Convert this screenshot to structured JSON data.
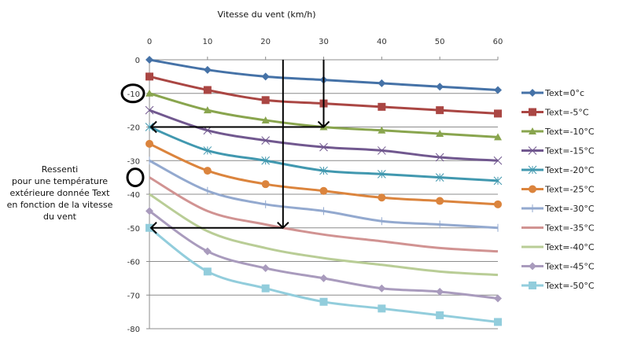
{
  "chart_data": {
    "type": "line",
    "title": "",
    "xlabel": "Vitesse du vent (km/h)",
    "ylabel": "Ressenti pour une température extérieure donnée Text en fonction de la vitesse du vent",
    "side_label_lines": [
      "Ressenti",
      "pour une température",
      "extérieure donnée Text",
      "en fonction de la vitesse",
      "du vent"
    ],
    "x": [
      0,
      10,
      20,
      30,
      40,
      50,
      60
    ],
    "x_ticks": [
      "0",
      "10",
      "20",
      "30",
      "40",
      "50",
      "60"
    ],
    "xlim": [
      0,
      60
    ],
    "x_axis_position": "top",
    "y_ticks": [
      "0",
      "-10",
      "-20",
      "-30",
      "-40",
      "-50",
      "-60",
      "-70",
      "-80"
    ],
    "y_tick_values": [
      0,
      -10,
      -20,
      -30,
      -40,
      -50,
      -60,
      -70,
      -80
    ],
    "ylim": [
      -80,
      0
    ],
    "grid": "horizontal",
    "legend_position": "right",
    "series": [
      {
        "name": "Text=0°c",
        "color": "#4572a7",
        "marker": "diamond",
        "values": [
          0,
          -3,
          -5,
          -6,
          -7,
          -8,
          -9
        ]
      },
      {
        "name": "Text=-5°C",
        "color": "#aa4643",
        "marker": "square",
        "values": [
          -5,
          -9,
          -12,
          -13,
          -14,
          -15,
          -16
        ]
      },
      {
        "name": "Text=-10°C",
        "color": "#89a54e",
        "marker": "triangle",
        "values": [
          -10,
          -15,
          -18,
          -20,
          -21,
          -22,
          -23
        ]
      },
      {
        "name": "Text=-15°C",
        "color": "#71588f",
        "marker": "x",
        "values": [
          -15,
          -21,
          -24,
          -26,
          -27,
          -29,
          -30
        ]
      },
      {
        "name": "Text=-20°C",
        "color": "#4198af",
        "marker": "star",
        "values": [
          -20,
          -27,
          -30,
          -33,
          -34,
          -35,
          -36
        ]
      },
      {
        "name": "Text=-25°C",
        "color": "#db843d",
        "marker": "circle",
        "values": [
          -25,
          -33,
          -37,
          -39,
          -41,
          -42,
          -43
        ]
      },
      {
        "name": "Text=-30°C",
        "color": "#93a9cf",
        "marker": "plus",
        "values": [
          -30,
          -39,
          -43,
          -45,
          -48,
          -49,
          -50
        ]
      },
      {
        "name": "Text=-35°C",
        "color": "#d19392",
        "marker": "none",
        "values": [
          -35,
          -45,
          -49,
          -52,
          -54,
          -56,
          -57
        ]
      },
      {
        "name": "Text=-40°C",
        "color": "#b9cd96",
        "marker": "none",
        "values": [
          -40,
          -51,
          -56,
          -59,
          -61,
          -63,
          -64
        ]
      },
      {
        "name": "Text=-45°C",
        "color": "#a99bbd",
        "marker": "diamond",
        "values": [
          -45,
          -57,
          -62,
          -65,
          -68,
          -69,
          -71
        ]
      },
      {
        "name": "Text=-50°C",
        "color": "#92cddc",
        "marker": "square",
        "values": [
          -50,
          -63,
          -68,
          -72,
          -74,
          -76,
          -78
        ]
      }
    ],
    "annotations": {
      "arrows": [
        {
          "description": "from wind 30 km/h down to Text=-10°C curve then left to -20",
          "from_x": 30,
          "to_y": -20
        },
        {
          "description": "from wind ~23 km/h down to Text=-35°C curve then left to -50",
          "from_x": 23,
          "to_y": -50
        }
      ],
      "circled_ticks": [
        "-10",
        "-35"
      ]
    }
  }
}
